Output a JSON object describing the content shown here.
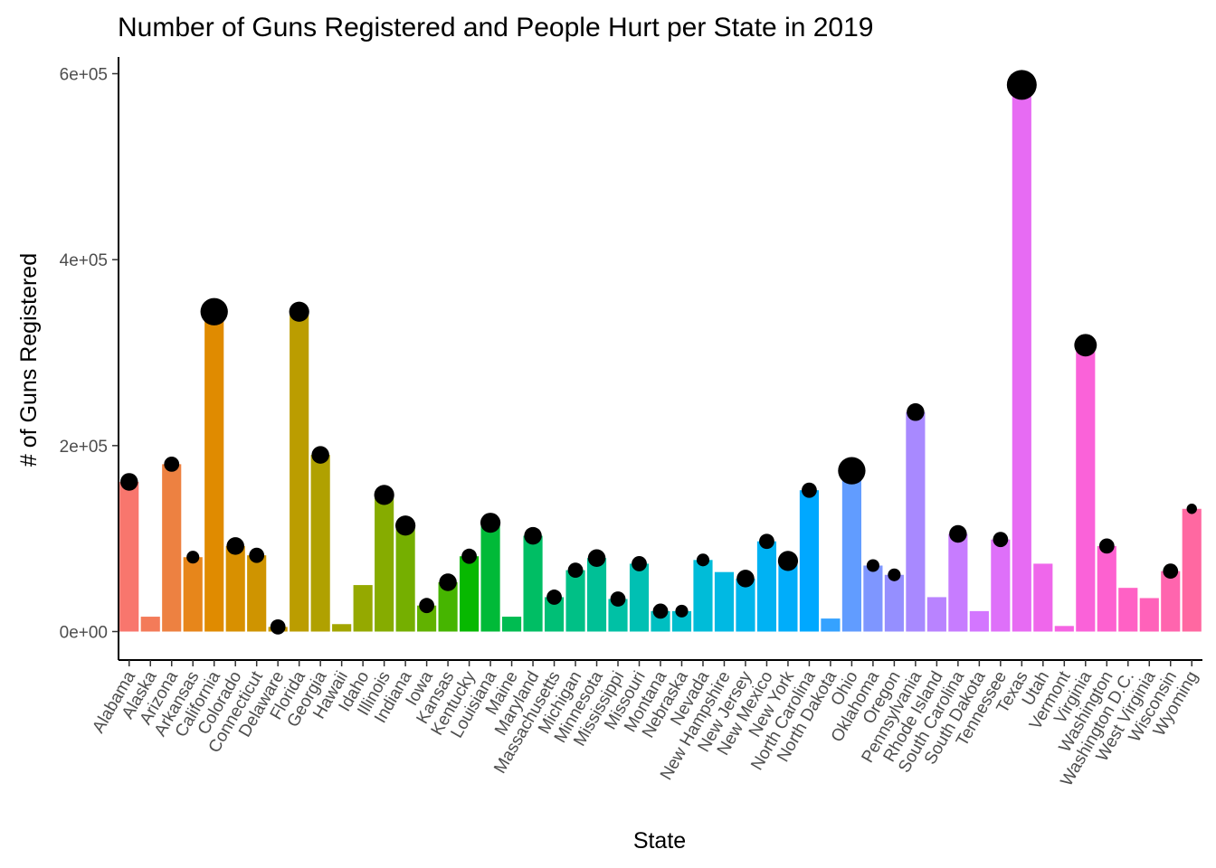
{
  "chart_data": {
    "type": "bar",
    "title": "Number of Guns Registered and People Hurt per State in 2019",
    "xlabel": "State",
    "ylabel": "# of Guns Registered",
    "ylim": [
      -30000,
      615000
    ],
    "yticks": [
      0,
      200000,
      400000,
      600000
    ],
    "ytick_labels": [
      "0e+00",
      "2e+05",
      "4e+05",
      "6e+05"
    ],
    "grid": false,
    "legend": "none",
    "categories": [
      "Alabama",
      "Alaska",
      "Arizona",
      "Arkansas",
      "California",
      "Colorado",
      "Connecticut",
      "Delaware",
      "Florida",
      "Georgia",
      "Hawaii",
      "Idaho",
      "Illinois",
      "Indiana",
      "Iowa",
      "Kansas",
      "Kentucky",
      "Louisiana",
      "Maine",
      "Maryland",
      "Massachusetts",
      "Michigan",
      "Minnesota",
      "Mississippi",
      "Missouri",
      "Montana",
      "Nebraska",
      "Nevada",
      "New Hampshire",
      "New Jersey",
      "New Mexico",
      "New York",
      "North Carolina",
      "North Dakota",
      "Ohio",
      "Oklahoma",
      "Oregon",
      "Pennsylvania",
      "Rhode Island",
      "South Carolina",
      "South Dakota",
      "Tennessee",
      "Texas",
      "Utah",
      "Vermont",
      "Virginia",
      "Washington",
      "Washington D.C.",
      "West Virginia",
      "Wisconsin",
      "Wyoming"
    ],
    "values": [
      161000,
      16000,
      180000,
      80000,
      344000,
      92000,
      82000,
      5000,
      344000,
      190000,
      8000,
      50000,
      147000,
      114000,
      28000,
      53000,
      81000,
      117000,
      16000,
      103000,
      37000,
      66000,
      79000,
      35000,
      73000,
      22000,
      22000,
      77000,
      64000,
      57000,
      97000,
      76000,
      152000,
      14000,
      173000,
      71000,
      61000,
      236000,
      37000,
      105000,
      22000,
      99000,
      588000,
      73000,
      6000,
      308000,
      92000,
      47000,
      36000,
      65000,
      132000
    ],
    "colors": [
      "#F8766D",
      "#F37B59",
      "#ED8141",
      "#E7861B",
      "#E08B00",
      "#D89000",
      "#CF9400",
      "#C59900",
      "#BB9D00",
      "#B0A100",
      "#A3A500",
      "#95A900",
      "#86AC00",
      "#75AF00",
      "#61B200",
      "#46B500",
      "#07B800",
      "#00BA38",
      "#00BC51",
      "#00BE64",
      "#00BF76",
      "#00C086",
      "#00C096",
      "#00C1A5",
      "#00C0B3",
      "#00BFC1",
      "#00BECD",
      "#00BCD8",
      "#00B9E3",
      "#00B6EC",
      "#00B2F3",
      "#00ADFA",
      "#00A8FF",
      "#35A2FF",
      "#619CFF",
      "#7E96FF",
      "#958FFF",
      "#A889FF",
      "#B983FF",
      "#C77CFF",
      "#D376FF",
      "#DE70F9",
      "#E76BF3",
      "#EF67EB",
      "#F564E3",
      "#FA62D9",
      "#FD61D0",
      "#FF61C5",
      "#FF62BA",
      "#FF65AE",
      "#FF68A1"
    ],
    "points": {
      "values": [
        161000,
        null,
        180000,
        80000,
        344000,
        92000,
        82000,
        5000,
        344000,
        190000,
        null,
        null,
        147000,
        114000,
        28000,
        53000,
        81000,
        117000,
        null,
        103000,
        37000,
        66000,
        79000,
        35000,
        73000,
        22000,
        22000,
        77000,
        null,
        57000,
        97000,
        76000,
        152000,
        null,
        173000,
        71000,
        61000,
        236000,
        null,
        105000,
        null,
        99000,
        588000,
        null,
        null,
        308000,
        92000,
        null,
        null,
        65000,
        132000
      ],
      "size_rank": [
        5,
        0,
        4,
        3,
        9,
        5,
        4,
        4,
        6,
        5,
        0,
        0,
        6,
        6,
        4,
        5,
        4,
        6,
        0,
        5,
        4,
        4,
        5,
        4,
        4,
        4,
        3,
        3,
        0,
        5,
        4,
        6,
        4,
        0,
        9,
        3,
        3,
        5,
        0,
        5,
        0,
        4,
        10,
        0,
        0,
        7,
        4,
        0,
        0,
        4,
        2
      ],
      "color": "#000000"
    }
  }
}
